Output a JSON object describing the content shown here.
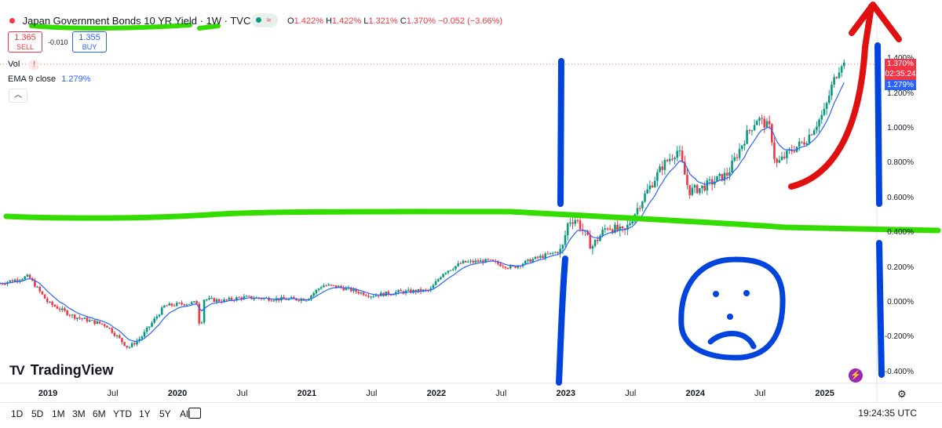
{
  "header": {
    "title": "Japan Government Bonds 10 YR Yield · 1W · TVC",
    "ohlc": {
      "o_label": "O",
      "o": "1.422%",
      "h_label": "H",
      "h": "1.422%",
      "l_label": "L",
      "l": "1.321%",
      "c_label": "C",
      "c": "1.370%",
      "change": "−0.052 (−3.66%)"
    },
    "sell_price": "1.365",
    "sell_label": "SELL",
    "spread": "-0.010",
    "buy_price": "1.355",
    "buy_label": "BUY",
    "vol_label": "Vol",
    "ema_label": "EMA 9 close",
    "ema_value": "1.279%"
  },
  "price_tags": {
    "close": "1.370%",
    "countdown": "02:35:24",
    "ema": "1.279%"
  },
  "timeframes": [
    "1D",
    "5D",
    "1M",
    "3M",
    "6M",
    "YTD",
    "1Y",
    "5Y",
    "All"
  ],
  "clock": "19:24:35 UTC",
  "logo_text": "TradingView",
  "colors": {
    "up": "#089981",
    "down": "#f23645",
    "ema": "#2962ff",
    "green_marker": "#33dd00",
    "blue_marker": "#0044dd",
    "red_marker": "#e01010"
  },
  "chart_data": {
    "type": "candlestick",
    "title": "Japan Government Bonds 10 YR Yield",
    "interval": "1W",
    "y_ticks": [
      "1.400%",
      "1.200%",
      "1.000%",
      "0.800%",
      "0.600%",
      "0.400%",
      "0.200%",
      "0.000%",
      "-0.200%",
      "-0.400%"
    ],
    "y_tick_values": [
      1.4,
      1.2,
      1.0,
      0.8,
      0.6,
      0.4,
      0.2,
      0.0,
      -0.2,
      -0.4
    ],
    "ylim": [
      -0.46,
      1.56
    ],
    "x_ticks": [
      {
        "label": "2019",
        "date": 2019.0,
        "year": true
      },
      {
        "label": "Jul",
        "date": 2019.5,
        "year": false
      },
      {
        "label": "2020",
        "date": 2020.0,
        "year": true
      },
      {
        "label": "Jul",
        "date": 2020.5,
        "year": false
      },
      {
        "label": "2021",
        "date": 2021.0,
        "year": true
      },
      {
        "label": "Jul",
        "date": 2021.5,
        "year": false
      },
      {
        "label": "2022",
        "date": 2022.0,
        "year": true
      },
      {
        "label": "Jul",
        "date": 2022.5,
        "year": false
      },
      {
        "label": "2023",
        "date": 2023.0,
        "year": true
      },
      {
        "label": "Jul",
        "date": 2023.5,
        "year": false
      },
      {
        "label": "2024",
        "date": 2024.0,
        "year": true
      },
      {
        "label": "Jul",
        "date": 2024.5,
        "year": false
      },
      {
        "label": "2025",
        "date": 2025.0,
        "year": true
      }
    ],
    "xlim": [
      2018.63,
      2025.39
    ],
    "yield_path": [
      [
        2018.63,
        0.11
      ],
      [
        2018.85,
        0.15
      ],
      [
        2019.0,
        0.0
      ],
      [
        2019.2,
        -0.08
      ],
      [
        2019.45,
        -0.13
      ],
      [
        2019.62,
        -0.26
      ],
      [
        2019.72,
        -0.2
      ],
      [
        2019.9,
        -0.02
      ],
      [
        2020.0,
        -0.01
      ],
      [
        2020.15,
        0.0
      ],
      [
        2020.18,
        -0.18
      ],
      [
        2020.2,
        0.02
      ],
      [
        2020.35,
        0.01
      ],
      [
        2020.5,
        0.03
      ],
      [
        2020.8,
        0.02
      ],
      [
        2021.0,
        0.02
      ],
      [
        2021.12,
        0.1
      ],
      [
        2021.25,
        0.09
      ],
      [
        2021.5,
        0.04
      ],
      [
        2021.7,
        0.06
      ],
      [
        2021.95,
        0.07
      ],
      [
        2022.05,
        0.17
      ],
      [
        2022.2,
        0.23
      ],
      [
        2022.4,
        0.24
      ],
      [
        2022.58,
        0.2
      ],
      [
        2022.75,
        0.25
      ],
      [
        2022.97,
        0.3
      ],
      [
        2023.02,
        0.47
      ],
      [
        2023.08,
        0.48
      ],
      [
        2023.2,
        0.32
      ],
      [
        2023.32,
        0.44
      ],
      [
        2023.45,
        0.4
      ],
      [
        2023.58,
        0.58
      ],
      [
        2023.75,
        0.79
      ],
      [
        2023.87,
        0.88
      ],
      [
        2023.95,
        0.64
      ],
      [
        2024.05,
        0.66
      ],
      [
        2024.25,
        0.74
      ],
      [
        2024.4,
        0.97
      ],
      [
        2024.48,
        1.06
      ],
      [
        2024.58,
        1.0
      ],
      [
        2024.62,
        0.79
      ],
      [
        2024.75,
        0.88
      ],
      [
        2024.85,
        0.93
      ],
      [
        2025.0,
        1.1
      ],
      [
        2025.06,
        1.26
      ],
      [
        2025.13,
        1.38
      ],
      [
        2025.15,
        1.37
      ]
    ],
    "ema_last": 1.279,
    "last_close": 1.37
  }
}
